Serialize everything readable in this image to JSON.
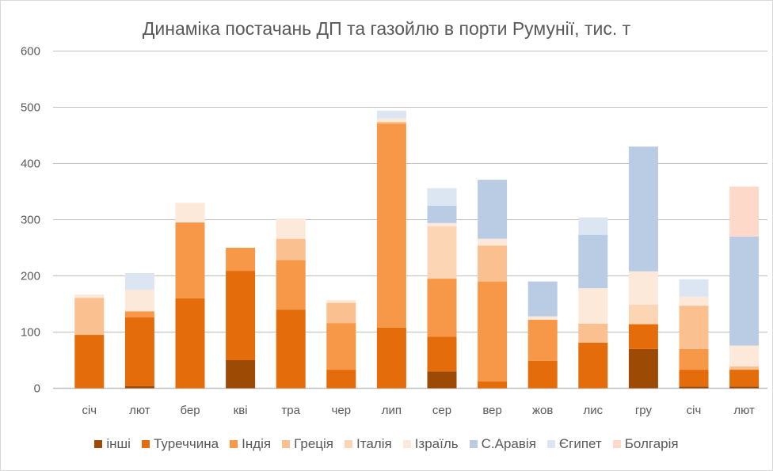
{
  "chart_data": {
    "type": "bar",
    "stacked": true,
    "title": "Динаміка постачань ДП та газойлю в порти Румунії, тис. т",
    "xlabel": "",
    "ylabel": "",
    "ylim": [
      0,
      600
    ],
    "yticks": [
      0,
      100,
      200,
      300,
      400,
      500,
      600
    ],
    "grid": true,
    "legend_position": "bottom",
    "categories": [
      "січ",
      "лют",
      "бер",
      "кві",
      "тра",
      "чер",
      "лип",
      "сер",
      "вер",
      "жов",
      "лис",
      "гру",
      "січ",
      "лют"
    ],
    "series": [
      {
        "name": "інші",
        "color": "#9c4a04",
        "values": [
          0,
          4,
          0,
          50,
          0,
          0,
          0,
          30,
          0,
          0,
          0,
          70,
          3,
          3
        ]
      },
      {
        "name": "Туреччина",
        "color": "#e46c0a",
        "values": [
          95,
          122,
          160,
          159,
          140,
          33,
          108,
          62,
          12,
          49,
          81,
          44,
          30,
          30
        ]
      },
      {
        "name": "Індія",
        "color": "#f79848",
        "values": [
          0,
          11,
          135,
          41,
          88,
          83,
          363,
          103,
          178,
          73,
          0,
          0,
          37,
          0
        ]
      },
      {
        "name": "Греція",
        "color": "#fac090",
        "values": [
          66,
          0,
          0,
          0,
          38,
          36,
          3,
          0,
          64,
          0,
          34,
          0,
          77,
          6
        ]
      },
      {
        "name": "Італія",
        "color": "#fcd5b5",
        "values": [
          0,
          0,
          0,
          0,
          0,
          0,
          0,
          93,
          0,
          0,
          0,
          35,
          0,
          0
        ]
      },
      {
        "name": "Ізраїль",
        "color": "#fde9d9",
        "values": [
          6,
          38,
          35,
          0,
          36,
          5,
          6,
          6,
          12,
          6,
          63,
          59,
          16,
          37
        ]
      },
      {
        "name": "С.Аравія",
        "color": "#b9cce4",
        "values": [
          0,
          0,
          0,
          0,
          0,
          0,
          0,
          31,
          105,
          62,
          95,
          222,
          0,
          194
        ]
      },
      {
        "name": "Єгипет",
        "color": "#dce6f2",
        "values": [
          0,
          30,
          0,
          0,
          0,
          0,
          14,
          31,
          0,
          0,
          31,
          0,
          31,
          0
        ]
      },
      {
        "name": "Болгарія",
        "color": "#fcd9c9",
        "values": [
          0,
          0,
          0,
          0,
          0,
          0,
          0,
          0,
          0,
          0,
          0,
          0,
          0,
          89
        ]
      }
    ]
  }
}
